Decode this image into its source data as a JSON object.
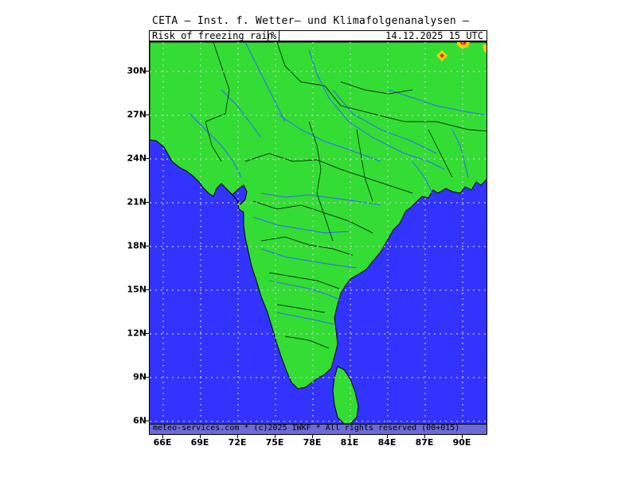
{
  "header": {
    "title": "CETA — Inst. f. Wetter— und Klimafolgenanalysen —",
    "parameter": "Risk_of_freezing_rain",
    "unit": "%",
    "valid_time": "14.12.2025 15 UTC"
  },
  "footer": {
    "credit": "meteo-services.com * (c)2025 IWKF * All rights reserved (00+015)"
  },
  "axes": {
    "lat_labels": [
      "30N",
      "27N",
      "24N",
      "21N",
      "18N",
      "15N",
      "12N",
      "9N",
      "6N"
    ],
    "lon_labels": [
      "66E",
      "69E",
      "72E",
      "75E",
      "78E",
      "81E",
      "84E",
      "87E",
      "90E"
    ]
  },
  "colors": {
    "sea": "#3333ff",
    "land": "#33dd33",
    "rivers": "#3366ff",
    "borders": "#000000",
    "footer": "#6a6ad8",
    "risk_high": "#ffcc00",
    "risk_core": "#dd2222"
  }
}
